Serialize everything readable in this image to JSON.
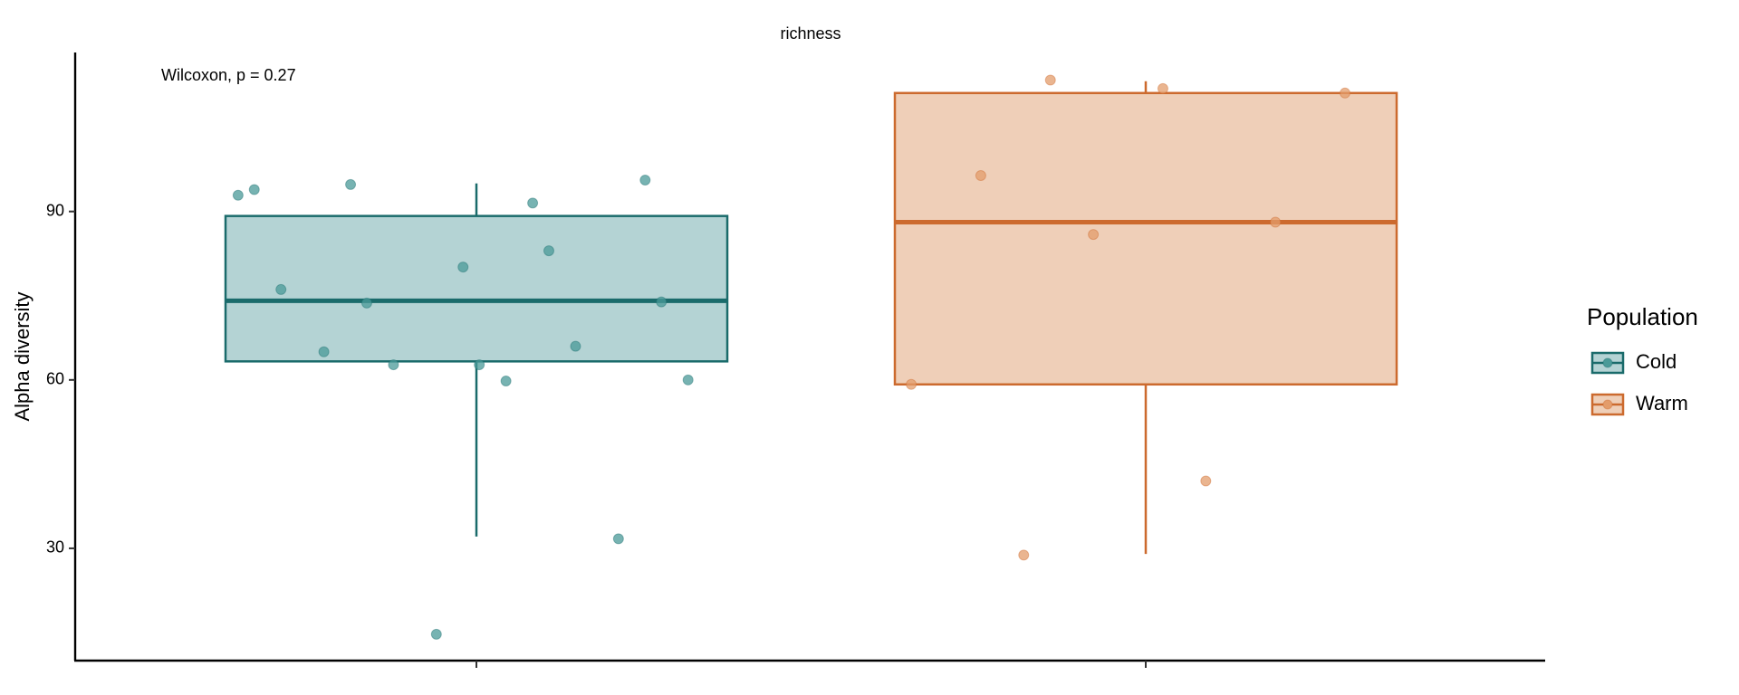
{
  "chart_data": {
    "type": "box",
    "title": "richness",
    "annotation": "Wilcoxon, p = 0.27",
    "y_label": "Alpha diversity",
    "legend_title": "Population",
    "categories": [
      null,
      null
    ],
    "ylim": [
      10,
      118
    ],
    "yticks": [
      30,
      60,
      90
    ],
    "grid": false,
    "series": [
      {
        "name": "Cold",
        "color": "#1a6b6b",
        "fill": "#b4d3d4",
        "point_color": "#4a9a98",
        "q1": 63.3,
        "median": 74.1,
        "q3": 89.2,
        "whisker_low": 32.1,
        "whisker_high": 95.0,
        "values": [
          92.9,
          91.5,
          94.8,
          95.6,
          80.1,
          76.1,
          66.0,
          62.7,
          60.0,
          59.8,
          65.0,
          31.7,
          14.7,
          93.9,
          83.0,
          73.7,
          73.9,
          62.7
        ]
      },
      {
        "name": "Warm",
        "color": "#cc6a2e",
        "fill": "#efcfb8",
        "point_color": "#e39c6b",
        "q1": 59.2,
        "median": 88.1,
        "q3": 111.1,
        "whisker_low": 29.0,
        "whisker_high": 113.2,
        "values": [
          113.4,
          111.1,
          111.9,
          96.4,
          88.1,
          85.9,
          59.2,
          42.0,
          28.8
        ]
      }
    ]
  }
}
